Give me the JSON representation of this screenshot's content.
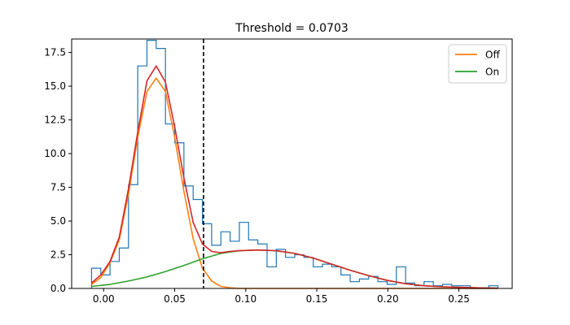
{
  "chart_data": {
    "type": "line",
    "title": "Threshold = 0.0703",
    "xlabel": "",
    "ylabel": "",
    "xlim": [
      -0.0225,
      0.2875
    ],
    "ylim": [
      0,
      18.5
    ],
    "grid": false,
    "legend_placement": "top-right",
    "xticks": [
      {
        "value": 0.0,
        "label": "0.00"
      },
      {
        "value": 0.05,
        "label": "0.05"
      },
      {
        "value": 0.1,
        "label": "0.10"
      },
      {
        "value": 0.15,
        "label": "0.15"
      },
      {
        "value": 0.2,
        "label": "0.20"
      },
      {
        "value": 0.25,
        "label": "0.25"
      }
    ],
    "yticks": [
      {
        "value": 0.0,
        "label": "0.0"
      },
      {
        "value": 2.5,
        "label": "2.5"
      },
      {
        "value": 5.0,
        "label": "5.0"
      },
      {
        "value": 7.5,
        "label": "7.5"
      },
      {
        "value": 10.0,
        "label": "10.0"
      },
      {
        "value": 12.5,
        "label": "12.5"
      },
      {
        "value": 15.0,
        "label": "15.0"
      },
      {
        "value": 17.5,
        "label": "17.5"
      }
    ],
    "threshold": 0.0703,
    "histogram": {
      "color": "#1f77b4",
      "bin_edges": [
        -0.0085,
        -0.002,
        0.0045,
        0.011,
        0.0175,
        0.024,
        0.0305,
        0.037,
        0.0435,
        0.05,
        0.0565,
        0.063,
        0.0695,
        0.076,
        0.0825,
        0.089,
        0.0955,
        0.102,
        0.1085,
        0.115,
        0.1215,
        0.128,
        0.1345,
        0.141,
        0.1475,
        0.154,
        0.1605,
        0.167,
        0.1735,
        0.18,
        0.1865,
        0.193,
        0.1995,
        0.206,
        0.2125,
        0.219,
        0.2255,
        0.232,
        0.2385,
        0.245,
        0.2515,
        0.258,
        0.2645,
        0.271,
        0.2775
      ],
      "values": [
        1.5,
        1.0,
        2.0,
        3.0,
        7.7,
        16.5,
        18.4,
        17.8,
        12.2,
        10.8,
        7.6,
        6.6,
        4.8,
        3.2,
        4.2,
        3.5,
        4.9,
        3.6,
        3.3,
        1.6,
        2.9,
        2.3,
        2.5,
        2.3,
        1.6,
        1.8,
        1.6,
        1.0,
        0.5,
        0.7,
        0.9,
        0.5,
        0.3,
        1.6,
        0.4,
        0.2,
        0.5,
        0.2,
        0.3,
        0.2,
        0.2,
        0.0,
        0.0,
        0.2
      ]
    },
    "series": [
      {
        "name": "Off",
        "color": "#ff7f0e",
        "x": [
          -0.0085,
          -0.002,
          0.0045,
          0.011,
          0.0175,
          0.024,
          0.0305,
          0.037,
          0.0435,
          0.05,
          0.0565,
          0.063,
          0.0695,
          0.076,
          0.0825,
          0.089,
          0.0955,
          0.11,
          0.14,
          0.17,
          0.2,
          0.23,
          0.2775
        ],
        "y": [
          0.3,
          0.8,
          1.9,
          3.6,
          7.0,
          11.2,
          14.6,
          15.6,
          14.6,
          11.2,
          7.2,
          3.7,
          1.5,
          0.55,
          0.15,
          0.05,
          0.0,
          0.0,
          0.0,
          0.0,
          0.0,
          0.0,
          0.0
        ]
      },
      {
        "name": "On",
        "color": "#2ca02c",
        "x": [
          -0.0085,
          0.0045,
          0.0175,
          0.0305,
          0.0435,
          0.0565,
          0.0695,
          0.0825,
          0.0955,
          0.1085,
          0.1215,
          0.1345,
          0.1475,
          0.1605,
          0.1735,
          0.1865,
          0.1995,
          0.2125,
          0.2255,
          0.2385,
          0.2515,
          0.2645,
          0.2775
        ],
        "y": [
          0.15,
          0.3,
          0.55,
          0.85,
          1.25,
          1.7,
          2.2,
          2.6,
          2.8,
          2.85,
          2.8,
          2.6,
          2.25,
          1.8,
          1.35,
          0.95,
          0.6,
          0.35,
          0.2,
          0.12,
          0.08,
          0.04,
          0.02
        ]
      },
      {
        "name": "",
        "color": "#d62728",
        "x": [
          -0.0085,
          -0.002,
          0.0045,
          0.011,
          0.0175,
          0.024,
          0.0305,
          0.037,
          0.0435,
          0.05,
          0.0565,
          0.063,
          0.0695,
          0.076,
          0.0825,
          0.089,
          0.0955,
          0.1085,
          0.1215,
          0.1345,
          0.1475,
          0.1605,
          0.1735,
          0.1865,
          0.1995,
          0.2125,
          0.2255,
          0.2385,
          0.2515,
          0.2645,
          0.2775
        ],
        "y": [
          0.4,
          1.0,
          2.0,
          3.8,
          7.4,
          11.6,
          15.4,
          16.5,
          15.3,
          12.0,
          8.2,
          4.9,
          3.3,
          2.75,
          2.65,
          2.75,
          2.8,
          2.85,
          2.8,
          2.6,
          2.25,
          1.8,
          1.35,
          0.95,
          0.6,
          0.35,
          0.2,
          0.12,
          0.08,
          0.04,
          0.02
        ]
      }
    ],
    "legend": [
      {
        "label": "Off",
        "color": "#ff7f0e"
      },
      {
        "label": "On",
        "color": "#2ca02c"
      }
    ]
  }
}
